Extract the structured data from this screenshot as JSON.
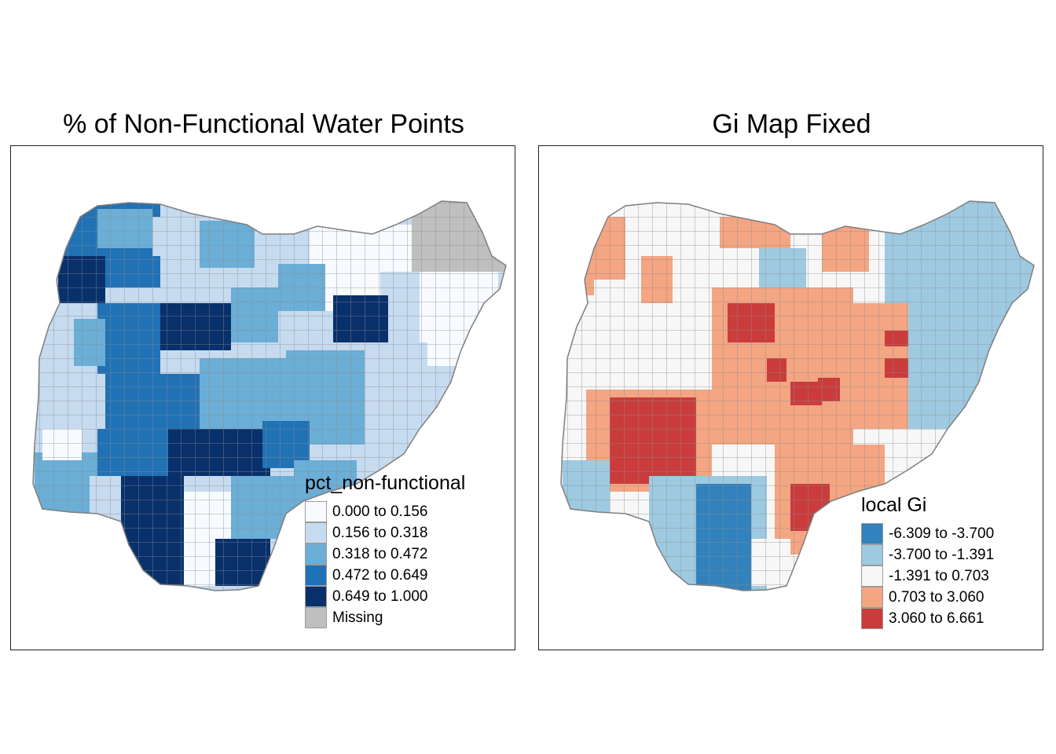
{
  "maps": [
    {
      "title": "% of Non-Functional Water Points",
      "legend_title": "pct_non-functional",
      "classes": [
        {
          "label": "0.000 to 0.156",
          "color": "#f7fbff"
        },
        {
          "label": "0.156 to 0.318",
          "color": "#c6dbef"
        },
        {
          "label": "0.318 to 0.472",
          "color": "#6baed6"
        },
        {
          "label": "0.472 to 0.649",
          "color": "#2171b5"
        },
        {
          "label": "0.649 to 1.000",
          "color": "#08306b"
        },
        {
          "label": "Missing",
          "color": "#bfbfbf"
        }
      ],
      "border_color": "#8c8c8c"
    },
    {
      "title": "Gi Map Fixed",
      "legend_title": "local Gi",
      "classes": [
        {
          "label": "-6.309 to -3.700",
          "color": "#3182bd"
        },
        {
          "label": "-3.700 to -1.391",
          "color": "#9ecae1"
        },
        {
          "label": "-1.391 to 0.703",
          "color": "#f7f7f7"
        },
        {
          "label": "0.703 to 3.060",
          "color": "#f4a582"
        },
        {
          "label": "3.060 to 6.661",
          "color": "#ca3c3c"
        }
      ],
      "border_color": "#8c8c8c"
    }
  ]
}
